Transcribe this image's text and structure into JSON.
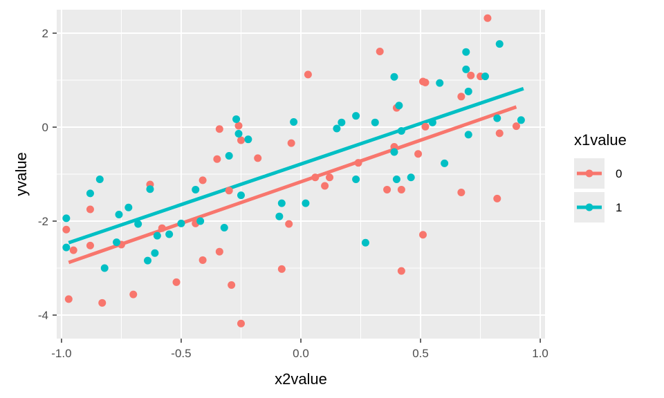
{
  "chart_data": {
    "type": "scatter",
    "title": "",
    "xlabel": "x2value",
    "ylabel": "yvalue",
    "xlim": [
      -1.02,
      1.02
    ],
    "ylim": [
      -4.5,
      2.5
    ],
    "x_ticks": [
      -1.0,
      -0.5,
      0.0,
      0.5,
      1.0
    ],
    "x_tick_labels": [
      "-1.0",
      "-0.5",
      "0.0",
      "0.5",
      "1.0"
    ],
    "y_ticks": [
      -4,
      -2,
      0,
      2
    ],
    "y_tick_labels": [
      "-4",
      "-2",
      "0",
      "2"
    ],
    "grid": true,
    "legend": {
      "title": "x1value",
      "position": "right"
    },
    "series": [
      {
        "name": "0",
        "color": "#F8766D",
        "points": [
          [
            -0.98,
            -2.18
          ],
          [
            -0.97,
            -3.66
          ],
          [
            -0.95,
            -2.62
          ],
          [
            -0.88,
            -1.75
          ],
          [
            -0.88,
            -2.52
          ],
          [
            -0.83,
            -3.74
          ],
          [
            -0.75,
            -2.5
          ],
          [
            -0.7,
            -3.56
          ],
          [
            -0.63,
            -1.22
          ],
          [
            -0.58,
            -2.15
          ],
          [
            -0.52,
            -3.3
          ],
          [
            -0.44,
            -2.05
          ],
          [
            -0.41,
            -1.13
          ],
          [
            -0.41,
            -2.83
          ],
          [
            -0.35,
            -0.68
          ],
          [
            -0.34,
            -0.04
          ],
          [
            -0.34,
            -2.65
          ],
          [
            -0.3,
            -1.35
          ],
          [
            -0.29,
            -3.36
          ],
          [
            -0.26,
            0.03
          ],
          [
            -0.25,
            -0.28
          ],
          [
            -0.25,
            -4.18
          ],
          [
            -0.18,
            -0.66
          ],
          [
            -0.08,
            -3.02
          ],
          [
            -0.05,
            -2.06
          ],
          [
            -0.04,
            -0.34
          ],
          [
            0.03,
            1.12
          ],
          [
            0.06,
            -1.07
          ],
          [
            0.1,
            -1.25
          ],
          [
            0.12,
            -1.07
          ],
          [
            0.24,
            -0.76
          ],
          [
            0.33,
            1.61
          ],
          [
            0.36,
            -1.33
          ],
          [
            0.39,
            -0.42
          ],
          [
            0.4,
            0.41
          ],
          [
            0.42,
            -3.06
          ],
          [
            0.42,
            -1.33
          ],
          [
            0.49,
            -0.57
          ],
          [
            0.51,
            -2.29
          ],
          [
            0.51,
            0.97
          ],
          [
            0.52,
            0.95
          ],
          [
            0.52,
            0.01
          ],
          [
            0.67,
            0.65
          ],
          [
            0.67,
            -1.39
          ],
          [
            0.71,
            1.1
          ],
          [
            0.75,
            1.08
          ],
          [
            0.78,
            2.32
          ],
          [
            0.82,
            -1.52
          ],
          [
            0.83,
            -0.13
          ],
          [
            0.9,
            0.02
          ]
        ],
        "fit": {
          "x": [
            -0.97,
            0.9
          ],
          "y": [
            -2.88,
            0.43
          ]
        }
      },
      {
        "name": "1",
        "color": "#00BFC4",
        "points": [
          [
            -0.98,
            -1.94
          ],
          [
            -0.98,
            -2.56
          ],
          [
            -0.88,
            -1.41
          ],
          [
            -0.84,
            -1.11
          ],
          [
            -0.82,
            -3.0
          ],
          [
            -0.77,
            -2.45
          ],
          [
            -0.76,
            -1.86
          ],
          [
            -0.72,
            -1.71
          ],
          [
            -0.68,
            -2.06
          ],
          [
            -0.64,
            -2.84
          ],
          [
            -0.63,
            -1.32
          ],
          [
            -0.61,
            -2.68
          ],
          [
            -0.6,
            -2.31
          ],
          [
            -0.55,
            -2.28
          ],
          [
            -0.5,
            -2.05
          ],
          [
            -0.44,
            -1.33
          ],
          [
            -0.42,
            -2.0
          ],
          [
            -0.32,
            -2.14
          ],
          [
            -0.3,
            -0.61
          ],
          [
            -0.27,
            0.17
          ],
          [
            -0.26,
            -0.14
          ],
          [
            -0.25,
            -1.45
          ],
          [
            -0.22,
            -0.26
          ],
          [
            -0.09,
            -1.9
          ],
          [
            -0.08,
            -1.62
          ],
          [
            -0.03,
            0.11
          ],
          [
            0.02,
            -1.62
          ],
          [
            0.15,
            -0.03
          ],
          [
            0.17,
            0.1
          ],
          [
            0.23,
            0.24
          ],
          [
            0.23,
            -1.11
          ],
          [
            0.27,
            -2.46
          ],
          [
            0.31,
            0.1
          ],
          [
            0.39,
            1.07
          ],
          [
            0.39,
            -0.53
          ],
          [
            0.4,
            -1.11
          ],
          [
            0.41,
            0.46
          ],
          [
            0.42,
            -0.08
          ],
          [
            0.46,
            -1.07
          ],
          [
            0.55,
            0.1
          ],
          [
            0.58,
            0.94
          ],
          [
            0.6,
            -0.77
          ],
          [
            0.69,
            1.6
          ],
          [
            0.69,
            1.23
          ],
          [
            0.7,
            0.76
          ],
          [
            0.7,
            -0.16
          ],
          [
            0.77,
            1.08
          ],
          [
            0.82,
            0.19
          ],
          [
            0.83,
            1.77
          ],
          [
            0.92,
            0.15
          ]
        ],
        "fit": {
          "x": [
            -0.97,
            0.93
          ],
          "y": [
            -2.46,
            0.82
          ]
        }
      }
    ]
  }
}
